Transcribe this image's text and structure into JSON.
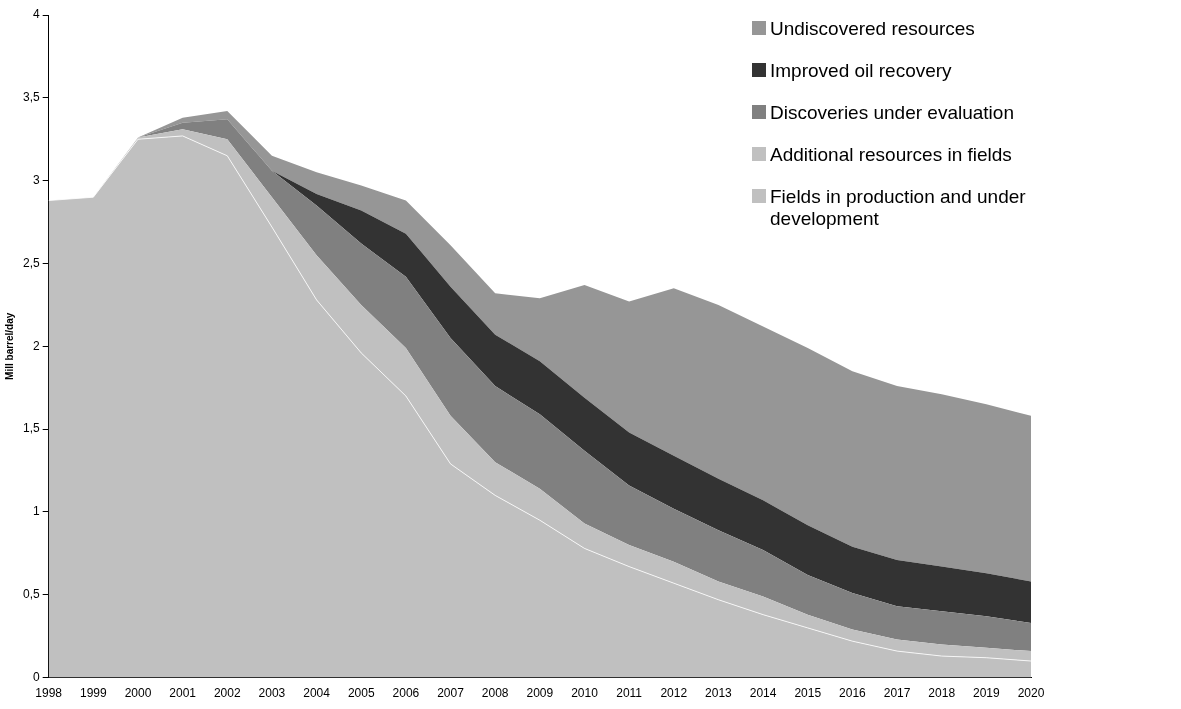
{
  "chart_data": {
    "type": "area",
    "stacked": true,
    "ylabel": "Mill barrel/day",
    "categories": [
      "1998",
      "1999",
      "2000",
      "2001",
      "2002",
      "2003",
      "2004",
      "2005",
      "2006",
      "2007",
      "2008",
      "2009",
      "2010",
      "2011",
      "2012",
      "2013",
      "2014",
      "2015",
      "2016",
      "2017",
      "2018",
      "2019",
      "2020"
    ],
    "ylim": [
      0,
      4
    ],
    "yticks": [
      0,
      {
        "value": 0.5,
        "label": "0,5"
      },
      1,
      {
        "value": 1.5,
        "label": "1,5"
      },
      2,
      {
        "value": 2.5,
        "label": "2,5"
      },
      3,
      {
        "value": 3.5,
        "label": "3,5"
      },
      4
    ],
    "grid": false,
    "legend": "top right",
    "series": [
      {
        "name": "Fields in production and under development",
        "color": "#c0c0c0",
        "values": [
          2.88,
          2.9,
          3.25,
          3.27,
          3.15,
          2.72,
          2.28,
          1.96,
          1.7,
          1.29,
          1.1,
          0.95,
          0.78,
          0.67,
          0.57,
          0.47,
          0.38,
          0.3,
          0.22,
          0.16,
          0.13,
          0.12,
          0.1
        ]
      },
      {
        "name": "Additional resources in fields",
        "color": "#c0c0c0",
        "values": [
          0,
          0,
          0.01,
          0.04,
          0.1,
          0.18,
          0.27,
          0.29,
          0.29,
          0.29,
          0.2,
          0.19,
          0.15,
          0.13,
          0.13,
          0.11,
          0.11,
          0.08,
          0.07,
          0.07,
          0.07,
          0.06,
          0.06
        ]
      },
      {
        "name": "Discoveries under evaluation",
        "color": "#808080",
        "values": [
          0,
          0,
          0,
          0.04,
          0.12,
          0.16,
          0.3,
          0.37,
          0.43,
          0.47,
          0.46,
          0.45,
          0.44,
          0.36,
          0.32,
          0.31,
          0.28,
          0.24,
          0.22,
          0.2,
          0.2,
          0.19,
          0.17
        ]
      },
      {
        "name": "Improved oil recovery",
        "color": "#333333",
        "values": [
          0,
          0,
          0,
          0,
          0,
          0,
          0.07,
          0.2,
          0.26,
          0.31,
          0.31,
          0.32,
          0.32,
          0.32,
          0.32,
          0.31,
          0.3,
          0.3,
          0.28,
          0.28,
          0.27,
          0.26,
          0.25
        ]
      },
      {
        "name": "Undiscovered resources",
        "color": "#969696",
        "values": [
          0,
          0,
          0,
          0.03,
          0.05,
          0.09,
          0.13,
          0.15,
          0.2,
          0.25,
          0.25,
          0.38,
          0.68,
          0.79,
          1.01,
          1.05,
          1.05,
          1.07,
          1.06,
          1.05,
          1.04,
          1.02,
          1
        ]
      }
    ]
  }
}
